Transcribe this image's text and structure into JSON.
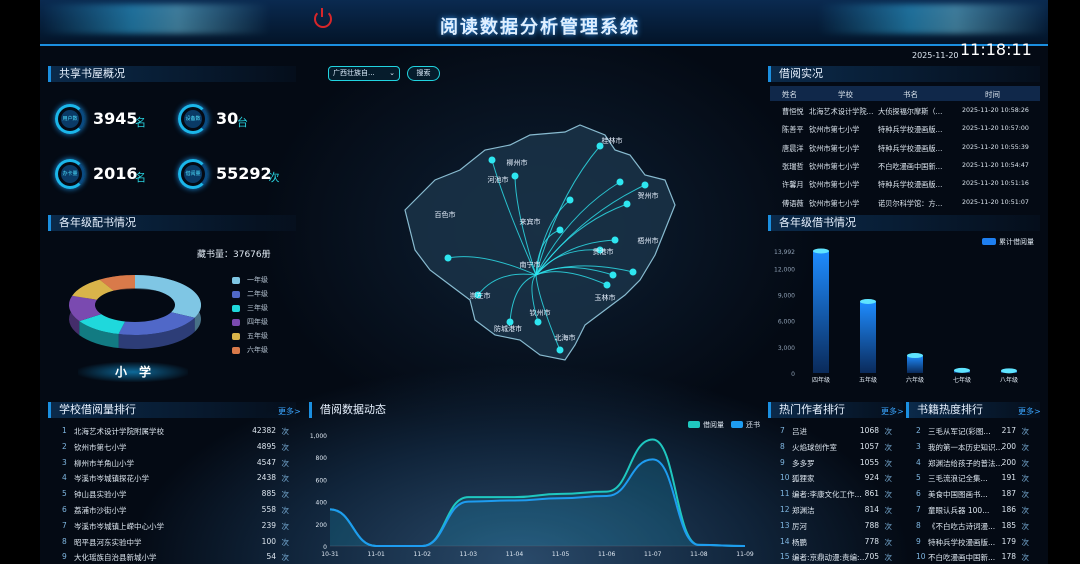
{
  "header": {
    "title": "阅读数据分析管理系统",
    "date": "2025-11-20",
    "time": "11:18:11"
  },
  "filter": {
    "region": "广西壮族自...",
    "search_label": "搜索"
  },
  "overview": {
    "title": "共享书屋概况",
    "stats": [
      {
        "label": "用户数",
        "value": "3945",
        "unit": "名"
      },
      {
        "label": "设备数",
        "value": "30",
        "unit": "台"
      },
      {
        "label": "办卡量",
        "value": "2016",
        "unit": "名"
      },
      {
        "label": "借阅量",
        "value": "55292",
        "unit": "次"
      }
    ]
  },
  "grade_books": {
    "title": "各年级配书情况",
    "total": "藏书量：37676册",
    "level_label": "小　学",
    "chart_data": {
      "type": "pie",
      "categories": [
        "一年级",
        "二年级",
        "三年级",
        "四年级",
        "五年级",
        "六年级"
      ],
      "values": [
        0.32,
        0.22,
        0.12,
        0.14,
        0.11,
        0.09
      ],
      "colors": [
        "#7fc6e4",
        "#5068c8",
        "#1fd8dc",
        "#7a4ab0",
        "#d9b44a",
        "#d97a4a"
      ]
    }
  },
  "school_rank": {
    "title": "学校借阅量排行",
    "more": "更多>",
    "unit": "次",
    "items": [
      {
        "rank": "1",
        "name": "北海艺术设计学院附属学校",
        "count": "42382"
      },
      {
        "rank": "2",
        "name": "钦州市第七小学",
        "count": "4895"
      },
      {
        "rank": "3",
        "name": "柳州市羊角山小学",
        "count": "4547"
      },
      {
        "rank": "4",
        "name": "岑溪市岑城镇探花小学",
        "count": "2438"
      },
      {
        "rank": "5",
        "name": "钟山县实验小学",
        "count": "885"
      },
      {
        "rank": "6",
        "name": "荔浦市沙街小学",
        "count": "558"
      },
      {
        "rank": "7",
        "name": "岑溪市岑城镇上嵘中心小学",
        "count": "239"
      },
      {
        "rank": "8",
        "name": "昭平县河东实验中学",
        "count": "100"
      },
      {
        "rank": "9",
        "name": "大化瑶族自治县新城小学",
        "count": "54"
      }
    ]
  },
  "map": {
    "cities": [
      "桂林市",
      "柳州市",
      "河池市",
      "贺州市",
      "百色市",
      "来宾市",
      "梧州市",
      "贵港市",
      "南宁市",
      "崇左市",
      "玉林市",
      "防城港市",
      "钦州市",
      "北海市"
    ]
  },
  "trend": {
    "title": "借阅数据动态",
    "chart_data": {
      "type": "area",
      "x": [
        "10-31",
        "11-01",
        "11-02",
        "11-03",
        "11-04",
        "11-05",
        "11-06",
        "11-07",
        "11-08",
        "11-09"
      ],
      "ylim": [
        0,
        1000
      ],
      "yticks": [
        "0",
        "200",
        "400",
        "600",
        "800",
        "1,000"
      ],
      "series": [
        {
          "name": "借阅量",
          "color": "#1fc8c0",
          "values": [
            330,
            0,
            0,
            440,
            440,
            470,
            490,
            960,
            10,
            0
          ]
        },
        {
          "name": "还书量",
          "color": "#1e9cf0",
          "values": [
            330,
            0,
            0,
            400,
            410,
            430,
            450,
            780,
            10,
            0
          ]
        }
      ]
    }
  },
  "records": {
    "title": "借阅实况",
    "columns": [
      "姓名",
      "学校",
      "书名",
      "时间"
    ],
    "rows": [
      [
        "曹恒悦",
        "北海艺术设计学院...",
        "大侦探福尔摩斯（...",
        "2025-11-20 10:58:26"
      ],
      [
        "陈善平",
        "钦州市第七小学",
        "特种兵学校漫画版...",
        "2025-11-20 10:57:00"
      ],
      [
        "唐晨洋",
        "钦州市第七小学",
        "特种兵学校漫画版...",
        "2025-11-20 10:55:39"
      ],
      [
        "张瑞哲",
        "钦州市第七小学",
        "不白吃漫画中国新...",
        "2025-11-20 10:54:47"
      ],
      [
        "许馨月",
        "钦州市第七小学",
        "特种兵学校漫画版...",
        "2025-11-20 10:51:16"
      ],
      [
        "傅语薇",
        "钦州市第七小学",
        "诺贝尔科学馆：方...",
        "2025-11-20 10:51:07"
      ]
    ]
  },
  "grade_borrow": {
    "title": "各年级借书情况",
    "chart_data": {
      "type": "bar",
      "categories": [
        "四年级",
        "五年级",
        "六年级",
        "七年级",
        "八年级"
      ],
      "series": [
        {
          "name": "累计借阅量",
          "values": [
            13992,
            8200,
            2000,
            300,
            250
          ]
        }
      ],
      "ylim": [
        0,
        13992
      ],
      "yticks": [
        "0",
        "3,000",
        "6,000",
        "9,000",
        "12,000",
        "13,992"
      ],
      "color": "#1e7ff0"
    }
  },
  "authors": {
    "title": "热门作者排行",
    "more": "更多>",
    "unit": "次",
    "items": [
      {
        "rank": "7",
        "name": "吕进",
        "count": "1068"
      },
      {
        "rank": "8",
        "name": "火焰球创作室",
        "count": "1057"
      },
      {
        "rank": "9",
        "name": "多多罗",
        "count": "1055"
      },
      {
        "rank": "10",
        "name": "狐狸家",
        "count": "924"
      },
      {
        "rank": "11",
        "name": "编者:李康文化工作...",
        "count": "861"
      },
      {
        "rank": "12",
        "name": "郑渊洁",
        "count": "814"
      },
      {
        "rank": "13",
        "name": "厉河",
        "count": "788"
      },
      {
        "rank": "14",
        "name": "杨鹏",
        "count": "778"
      },
      {
        "rank": "15",
        "name": "编者:京鼎动漫:责编:...",
        "count": "705"
      }
    ]
  },
  "books": {
    "title": "书籍热度排行",
    "more": "更多>",
    "unit": "次",
    "items": [
      {
        "rank": "2",
        "name": "三毛从军记(彩图...",
        "count": "217"
      },
      {
        "rank": "3",
        "name": "我的第一本历史知识...",
        "count": "200"
      },
      {
        "rank": "4",
        "name": "郑渊洁给孩子的普法...",
        "count": "200"
      },
      {
        "rank": "5",
        "name": "三毛流浪记全集...",
        "count": "191"
      },
      {
        "rank": "6",
        "name": "美食中国图画书...",
        "count": "187"
      },
      {
        "rank": "7",
        "name": "童眼认兵器 100...",
        "count": "186"
      },
      {
        "rank": "8",
        "name": "《不白吃古诗词漫...",
        "count": "185"
      },
      {
        "rank": "9",
        "name": "特种兵学校漫画版...",
        "count": "179"
      },
      {
        "rank": "10",
        "name": "不白吃漫画中国新...",
        "count": "178"
      }
    ]
  }
}
